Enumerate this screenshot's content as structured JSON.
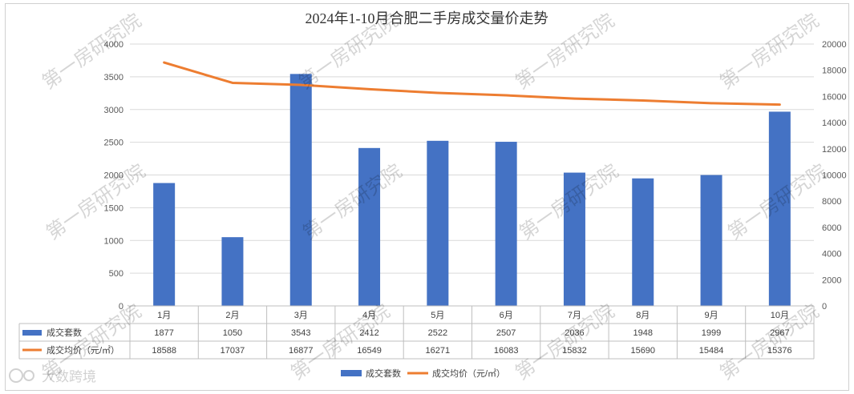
{
  "chart_data": {
    "type": "bar+line",
    "title": "2024年1-10月合肥二手房成交量价走势",
    "categories": [
      "1月",
      "2月",
      "3月",
      "4月",
      "5月",
      "6月",
      "7月",
      "8月",
      "9月",
      "10月"
    ],
    "series": [
      {
        "name": "成交套数",
        "type": "bar",
        "axis": "left",
        "color": "#4472C4",
        "values": [
          1877,
          1050,
          3543,
          2412,
          2522,
          2507,
          2036,
          1948,
          1999,
          2967
        ]
      },
      {
        "name": "成交均价（元/㎡）",
        "type": "line",
        "axis": "right",
        "color": "#ED7D31",
        "values": [
          18588,
          17037,
          16877,
          16549,
          16271,
          16083,
          15832,
          15690,
          15484,
          15376
        ]
      }
    ],
    "y_left": {
      "min": 0,
      "max": 4000,
      "ticks": [
        0,
        500,
        1000,
        1500,
        2000,
        2500,
        3000,
        3500,
        4000
      ]
    },
    "y_right": {
      "min": 0,
      "max": 20000,
      "ticks": [
        0,
        2000,
        4000,
        6000,
        8000,
        10000,
        12000,
        14000,
        16000,
        18000,
        20000
      ]
    },
    "grid": true,
    "legend": "bottom",
    "data_table": true
  },
  "legend_labels": [
    "成交套数",
    "成交均价（元/㎡）"
  ],
  "watermark_text": "第一房研究院",
  "logo_text": "大数跨境"
}
